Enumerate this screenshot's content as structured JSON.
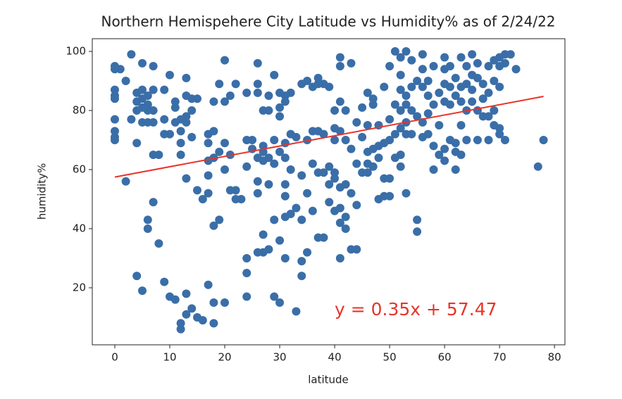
{
  "chart_data": {
    "type": "scatter",
    "title": "Northern Hemispehere City Latitude vs Humidity% as of 2/24/22",
    "x_label": "latitude",
    "y_label": "humidity%",
    "color": "#3a6ea8",
    "x": [
      0,
      0,
      0,
      0,
      0,
      0,
      0,
      0,
      0,
      1,
      2,
      2,
      3,
      3,
      4,
      4,
      4,
      4,
      4,
      5,
      5,
      5,
      5,
      5,
      5,
      6,
      6,
      6,
      6,
      6,
      6,
      7,
      7,
      7,
      7,
      7,
      7,
      8,
      8,
      9,
      9,
      9,
      9,
      10,
      10,
      10,
      11,
      11,
      11,
      11,
      12,
      12,
      12,
      12,
      12,
      12,
      13,
      13,
      13,
      13,
      13,
      13,
      13,
      14,
      14,
      14,
      14,
      15,
      15,
      15,
      16,
      16,
      17,
      17,
      17,
      17,
      17,
      17,
      18,
      18,
      18,
      18,
      18,
      18,
      19,
      19,
      19,
      20,
      20,
      20,
      20,
      20,
      21,
      21,
      21,
      22,
      22,
      22,
      23,
      24,
      24,
      24,
      24,
      24,
      24,
      25,
      25,
      26,
      26,
      26,
      26,
      26,
      26,
      26,
      27,
      27,
      27,
      27,
      27,
      27,
      28,
      28,
      28,
      28,
      28,
      29,
      29,
      29,
      29,
      29,
      30,
      30,
      30,
      30,
      30,
      30,
      31,
      31,
      31,
      31,
      31,
      31,
      31,
      31,
      32,
      32,
      32,
      32,
      33,
      33,
      33,
      34,
      34,
      34,
      34,
      34,
      35,
      35,
      35,
      35,
      36,
      36,
      36,
      36,
      37,
      37,
      37,
      37,
      37,
      38,
      38,
      38,
      38,
      39,
      39,
      39,
      39,
      40,
      40,
      40,
      40,
      40,
      40,
      41,
      41,
      41,
      41,
      41,
      41,
      41,
      41,
      42,
      42,
      42,
      42,
      42,
      43,
      43,
      43,
      43,
      44,
      44,
      44,
      44,
      45,
      45,
      45,
      46,
      46,
      46,
      46,
      46,
      47,
      47,
      47,
      47,
      48,
      48,
      48,
      48,
      49,
      49,
      49,
      49,
      50,
      50,
      50,
      50,
      50,
      51,
      51,
      51,
      51,
      52,
      52,
      52,
      52,
      52,
      52,
      52,
      53,
      53,
      53,
      53,
      53,
      53,
      54,
      54,
      54,
      54,
      55,
      55,
      55,
      55,
      56,
      56,
      56,
      56,
      56,
      57,
      57,
      57,
      57,
      58,
      58,
      58,
      58,
      59,
      59,
      59,
      60,
      60,
      60,
      60,
      60,
      60,
      61,
      61,
      61,
      61,
      62,
      62,
      62,
      62,
      62,
      63,
      63,
      63,
      63,
      63,
      64,
      64,
      64,
      64,
      65,
      65,
      65,
      65,
      66,
      66,
      66,
      66,
      67,
      67,
      67,
      68,
      68,
      68,
      68,
      69,
      69,
      69,
      69,
      70,
      70,
      70,
      70,
      70,
      71,
      71,
      71,
      72,
      73,
      77,
      78
    ],
    "values": [
      95,
      94,
      87,
      85,
      84,
      77,
      73,
      71,
      70,
      94,
      90,
      56,
      99,
      77,
      86,
      83,
      80,
      69,
      24,
      96,
      87,
      84,
      81,
      76,
      19,
      85,
      82,
      80,
      76,
      43,
      40,
      95,
      87,
      80,
      76,
      65,
      49,
      65,
      35,
      87,
      77,
      72,
      22,
      92,
      72,
      17,
      83,
      81,
      76,
      16,
      77,
      73,
      69,
      65,
      8,
      6,
      91,
      85,
      78,
      76,
      57,
      18,
      11,
      84,
      80,
      71,
      13,
      84,
      53,
      10,
      50,
      9,
      72,
      69,
      63,
      58,
      52,
      21,
      83,
      73,
      64,
      41,
      15,
      8,
      89,
      66,
      43,
      97,
      83,
      69,
      60,
      15,
      85,
      65,
      53,
      89,
      53,
      50,
      50,
      86,
      70,
      61,
      30,
      25,
      17,
      70,
      67,
      96,
      89,
      86,
      64,
      56,
      52,
      32,
      80,
      68,
      66,
      63,
      38,
      32,
      85,
      80,
      64,
      55,
      33,
      92,
      70,
      62,
      43,
      17,
      86,
      81,
      78,
      66,
      36,
      15,
      85,
      83,
      69,
      64,
      55,
      51,
      44,
      30,
      86,
      72,
      60,
      45,
      71,
      47,
      12,
      89,
      58,
      43,
      29,
      24,
      90,
      70,
      52,
      32,
      88,
      73,
      62,
      46,
      91,
      89,
      73,
      59,
      37,
      89,
      72,
      59,
      37,
      88,
      61,
      55,
      49,
      80,
      74,
      70,
      59,
      57,
      46,
      98,
      95,
      83,
      73,
      54,
      47,
      42,
      30,
      80,
      70,
      55,
      44,
      40,
      96,
      67,
      52,
      33,
      76,
      62,
      48,
      33,
      81,
      71,
      59,
      86,
      75,
      66,
      62,
      59,
      84,
      82,
      67,
      61,
      75,
      68,
      64,
      50,
      88,
      69,
      57,
      51,
      95,
      77,
      70,
      51,
      57,
      100,
      82,
      72,
      64,
      98,
      87,
      80,
      74,
      61,
      65,
      92,
      100,
      85,
      76,
      72,
      52,
      82,
      97,
      88,
      80,
      72,
      90,
      78,
      43,
      39,
      99,
      94,
      88,
      76,
      71,
      90,
      85,
      79,
      72,
      95,
      82,
      68,
      60,
      86,
      75,
      65,
      98,
      94,
      89,
      83,
      67,
      63,
      95,
      88,
      82,
      70,
      91,
      85,
      60,
      66,
      69,
      98,
      88,
      83,
      75,
      65,
      95,
      89,
      80,
      70,
      99,
      92,
      87,
      83,
      96,
      91,
      80,
      70,
      89,
      84,
      78,
      95,
      86,
      78,
      70,
      97,
      90,
      80,
      75,
      98,
      95,
      88,
      74,
      72,
      99,
      96,
      70,
      99,
      94,
      61,
      70
    ],
    "trendline": {
      "x": [
        0,
        78
      ],
      "values": [
        57.47,
        84.77
      ],
      "color": "#e8332a"
    },
    "annotation": "y = 0.35x + 57.47",
    "xlim": [
      -4.1,
      81.9
    ],
    "ylim": [
      0.7,
      104.3
    ],
    "xticks": [
      0,
      10,
      20,
      30,
      40,
      50,
      60,
      70,
      80
    ],
    "yticks": [
      20,
      40,
      60,
      80,
      100
    ]
  }
}
